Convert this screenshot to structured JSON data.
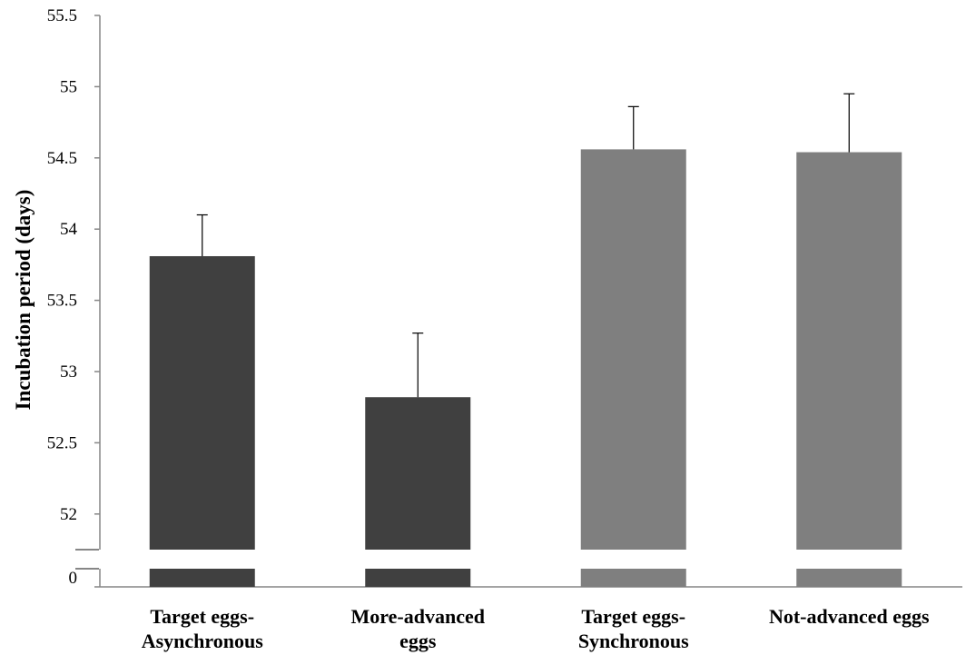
{
  "chart_data": {
    "type": "bar",
    "title": "",
    "xlabel": "",
    "ylabel": "Incubation period (days)",
    "ylim": [
      51.75,
      55.5
    ],
    "axis_break": true,
    "ytick_values": [
      52,
      52.5,
      53,
      53.5,
      54,
      54.5,
      55,
      55.5
    ],
    "ytick_labels": [
      "52",
      "52.5",
      "53",
      "53.5",
      "54",
      "54.5",
      "55",
      "55.5"
    ],
    "baseline_label": "0",
    "categories": [
      [
        "Target eggs-",
        "Asynchronous"
      ],
      [
        "More-advanced",
        "eggs"
      ],
      [
        "Target eggs-",
        "Synchronous"
      ],
      [
        "Not-advanced eggs"
      ]
    ],
    "values": [
      53.81,
      52.82,
      54.56,
      54.54
    ],
    "error_upper": [
      0.29,
      0.45,
      0.3,
      0.41
    ],
    "bar_colors": [
      "#404040",
      "#404040",
      "#7f7f7f",
      "#7f7f7f"
    ],
    "axis_color": "#868686",
    "grid": false,
    "legend": "none"
  }
}
